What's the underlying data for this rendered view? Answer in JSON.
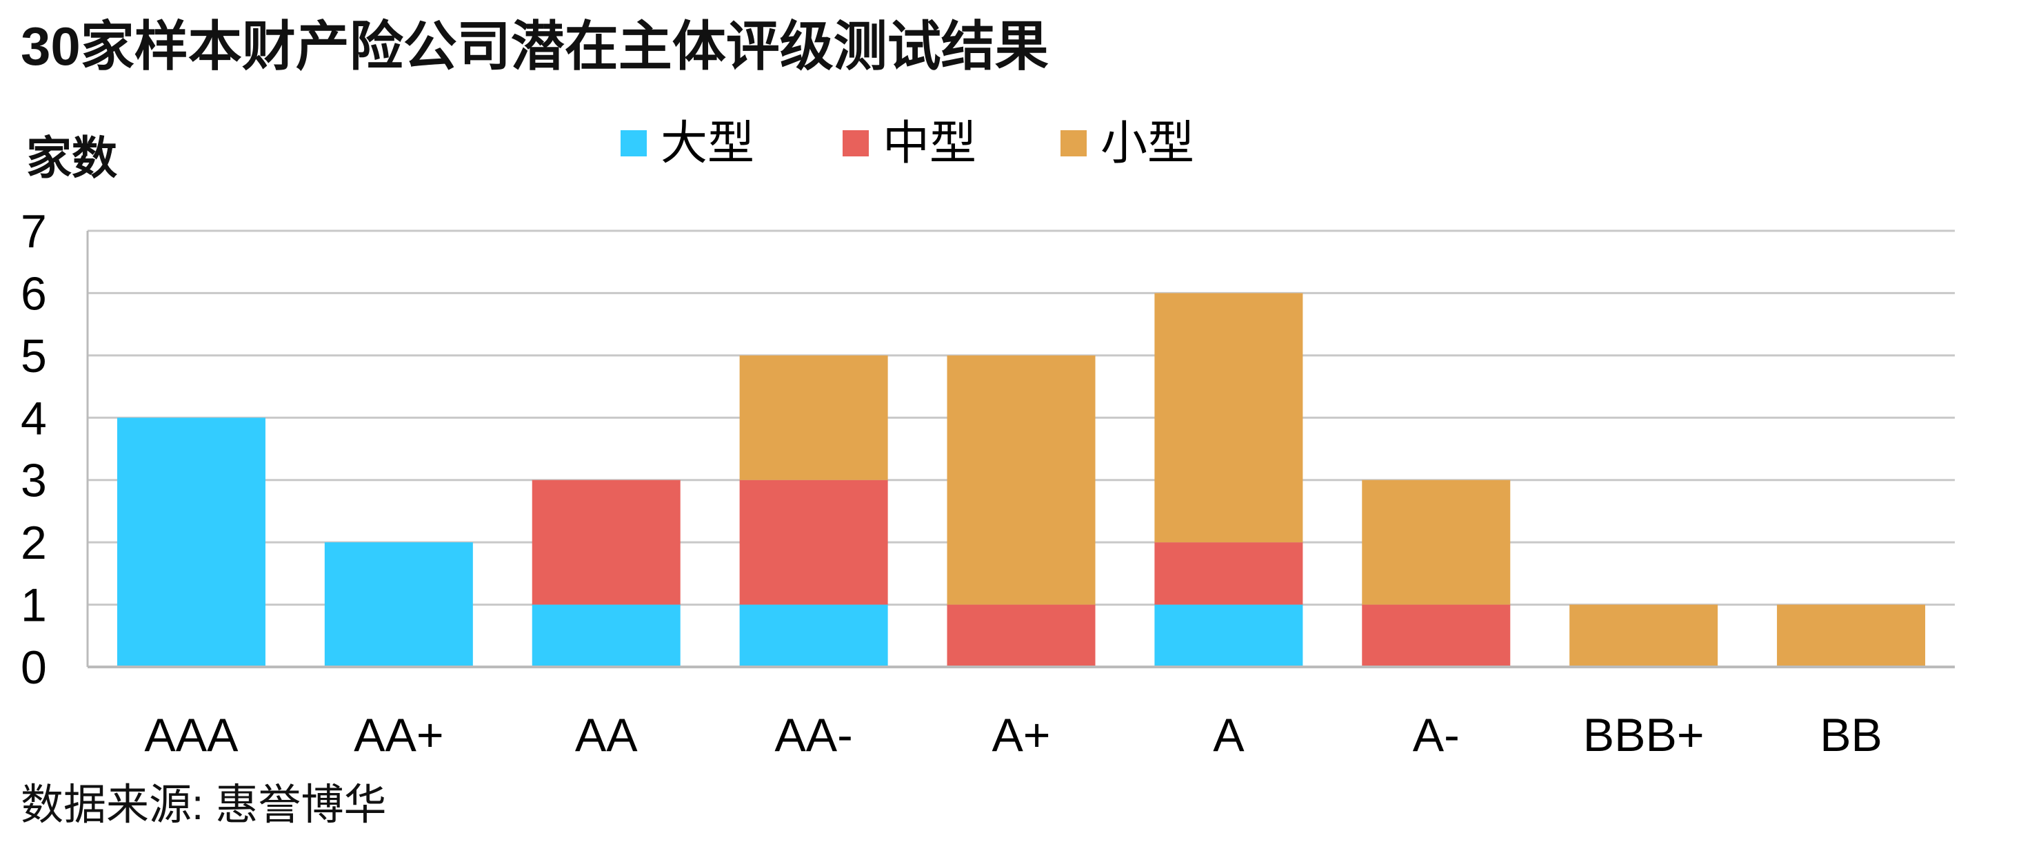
{
  "title": "30家样本财产险公司潜在主体评级测试结果",
  "source": "数据来源: 惠誉博华",
  "colors": {
    "large": "#33CCFF",
    "medium": "#E8615B",
    "small": "#E3A54E",
    "grid": "#C8C8C8",
    "axis": "#BBBBBB"
  },
  "chart_data": {
    "type": "bar",
    "stacked": true,
    "title": "30家样本财产险公司潜在主体评级测试结果",
    "ylabel": "家数",
    "xlabel": "",
    "ylim": [
      0,
      7
    ],
    "yticks": [
      0,
      1,
      2,
      3,
      4,
      5,
      6,
      7
    ],
    "grid": true,
    "legend_position": "top-center",
    "categories": [
      "AAA",
      "AA+",
      "AA",
      "AA-",
      "A+",
      "A",
      "A-",
      "BBB+",
      "BB"
    ],
    "series": [
      {
        "name": "大型",
        "color": "#33CCFF",
        "values": [
          4,
          2,
          1,
          1,
          0,
          1,
          0,
          0,
          0
        ]
      },
      {
        "name": "中型",
        "color": "#E8615B",
        "values": [
          0,
          0,
          2,
          2,
          1,
          1,
          1,
          0,
          0
        ]
      },
      {
        "name": "小型",
        "color": "#E3A54E",
        "values": [
          0,
          0,
          0,
          2,
          4,
          4,
          2,
          1,
          1
        ]
      }
    ]
  }
}
